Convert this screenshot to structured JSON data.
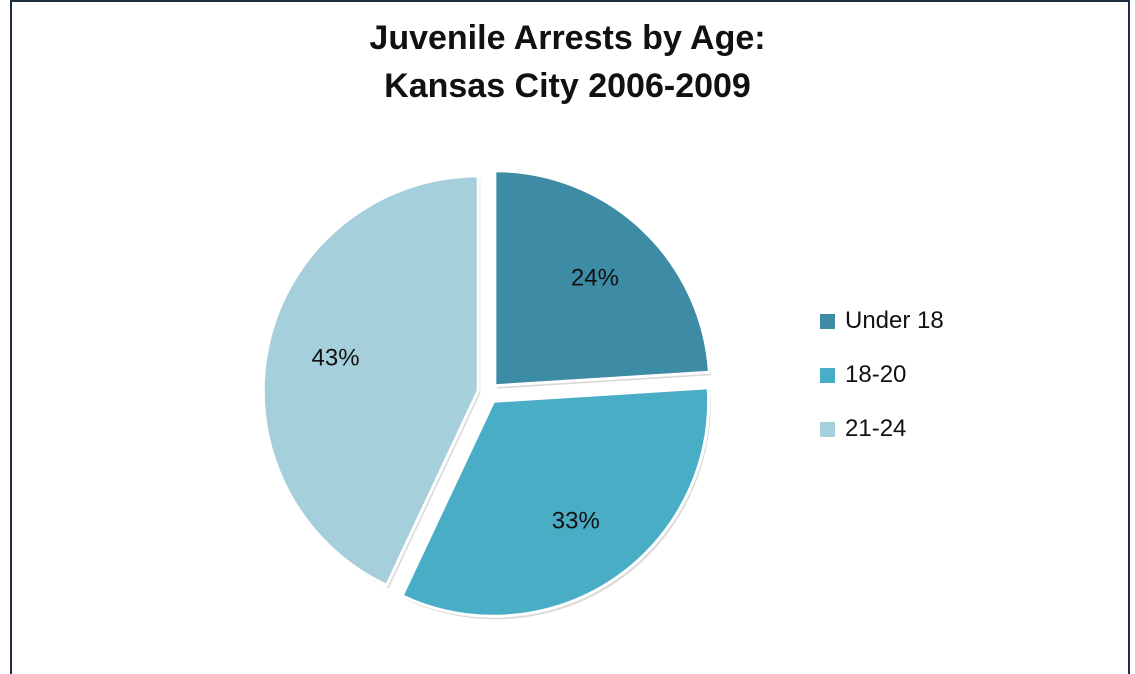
{
  "chart_data": {
    "type": "pie",
    "title": "Juvenile Arrests by Age:",
    "subtitle": "Kansas City 2006-2009",
    "categories": [
      "Under 18",
      "18-20",
      "21-24"
    ],
    "values": [
      24,
      33,
      43
    ],
    "labels": [
      "24%",
      "33%",
      "43%"
    ],
    "colors": [
      "#3d8ba4",
      "#4aadc6",
      "#a6cfdc"
    ],
    "legend_position": "right",
    "exploded": true
  }
}
